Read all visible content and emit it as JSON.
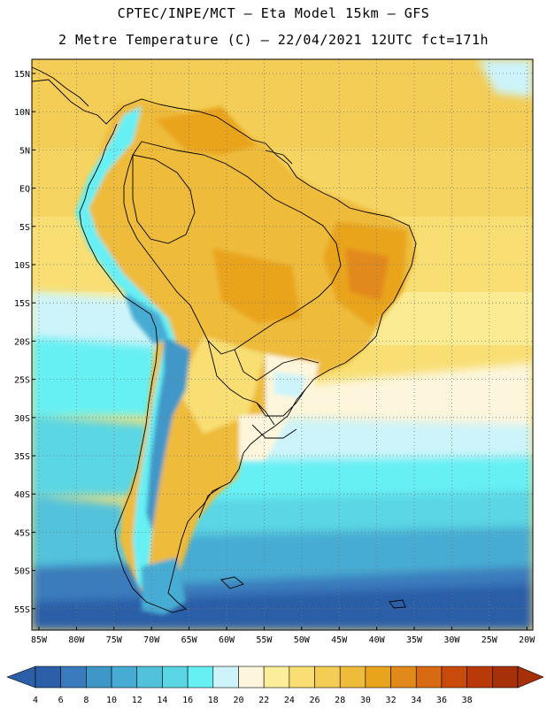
{
  "header": {
    "line1": "CPTEC/INPE/MCT –  Eta Model 15km – GFS",
    "line2": "2 Metre Temperature (C) – 22/04/2021 12UTC fct=171h"
  },
  "map": {
    "lat_labels": [
      "15N",
      "10N",
      "5N",
      "EQ",
      "5S",
      "10S",
      "15S",
      "20S",
      "25S",
      "30S",
      "35S",
      "40S",
      "45S",
      "50S",
      "55S"
    ],
    "lon_labels": [
      "85W",
      "80W",
      "75W",
      "70W",
      "65W",
      "60W",
      "55W",
      "50W",
      "45W",
      "40W",
      "35W",
      "30W",
      "25W",
      "20W"
    ]
  },
  "legend": {
    "values": [
      "4",
      "6",
      "8",
      "10",
      "12",
      "14",
      "16",
      "18",
      "20",
      "22",
      "24",
      "26",
      "28",
      "30",
      "32",
      "34",
      "36",
      "38"
    ],
    "colors": [
      "#2b5fa8",
      "#3a7bbd",
      "#3f97c8",
      "#46acd3",
      "#52c2dc",
      "#5ad6e4",
      "#66f0f4",
      "#cdf4fa",
      "#fdf6dc",
      "#fbed9a",
      "#f8de73",
      "#f3cd55",
      "#eebb3a",
      "#e9a41e",
      "#e1891b",
      "#d76a12",
      "#c94b0b",
      "#b8390a",
      "#a63008"
    ],
    "low_end_color": "#2b5fa8",
    "high_end_color": "#a63008"
  }
}
